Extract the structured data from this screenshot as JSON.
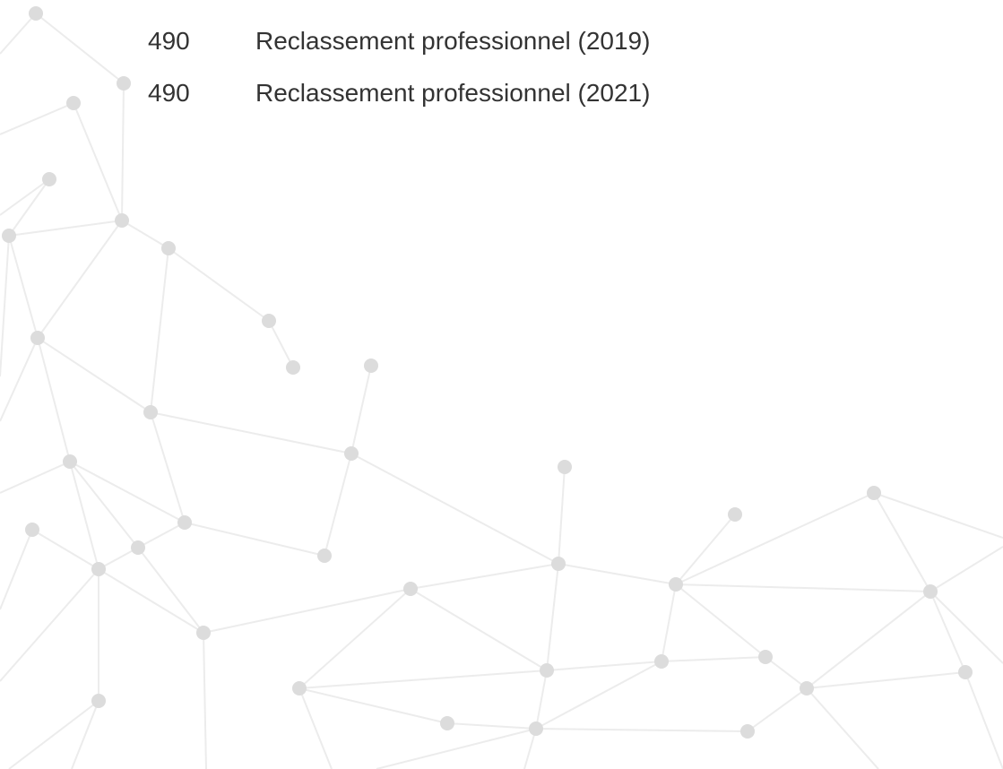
{
  "rows": [
    {
      "code": "490",
      "label": "Reclassement professionnel (2019)"
    },
    {
      "code": "490",
      "label": "Reclassement professionnel (2021)"
    }
  ]
}
